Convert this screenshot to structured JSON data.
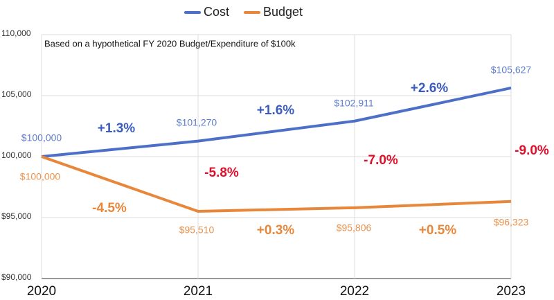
{
  "chart_data": {
    "type": "line",
    "note": "Based on a hypothetical FY 2020 Budget/Expenditure of $100k",
    "categories": [
      "2020",
      "2021",
      "2022",
      "2023"
    ],
    "series": [
      {
        "name": "Cost",
        "color": "#4c6fc7",
        "values": [
          100000,
          101270,
          102911,
          105627
        ],
        "value_labels": [
          "$100,000",
          "$101,270",
          "$102,911",
          "$105,627"
        ]
      },
      {
        "name": "Budget",
        "color": "#e8873a",
        "values": [
          100000,
          95510,
          95806,
          96323
        ],
        "value_labels": [
          "$100,000",
          "$95,510",
          "$95,806",
          "$96,323"
        ]
      }
    ],
    "ylim": [
      90000,
      110000
    ],
    "yticks": [
      {
        "value": 90000,
        "label": "$90,000"
      },
      {
        "value": 95000,
        "label": "$95,000"
      },
      {
        "value": 100000,
        "label": "100,000"
      },
      {
        "value": 105000,
        "label": "105,000"
      },
      {
        "value": 110000,
        "label": "110,000"
      }
    ],
    "grid": true,
    "legend": "top",
    "annotations": [
      {
        "text": "+1.3%",
        "color": "#3a5bbf"
      },
      {
        "text": "+1.6%",
        "color": "#3a5bbf"
      },
      {
        "text": "+2.6%",
        "color": "#3a5bbf"
      },
      {
        "text": "-4.5%",
        "color": "#e8873a"
      },
      {
        "text": "+0.3%",
        "color": "#e8873a"
      },
      {
        "text": "+0.5%",
        "color": "#e8873a"
      },
      {
        "text": "-5.8%",
        "color": "#e0102a"
      },
      {
        "text": "-7.0%",
        "color": "#e0102a"
      },
      {
        "text": "-9.0%",
        "color": "#e0102a"
      }
    ]
  }
}
